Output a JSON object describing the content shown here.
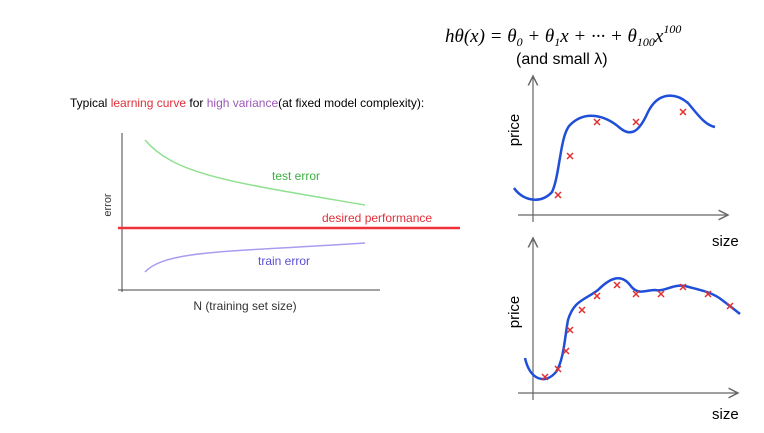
{
  "formula": {
    "parts": [
      "hθ(x) = θ",
      "0",
      " + θ",
      "1",
      "x + ··· + θ",
      "100",
      "x",
      "100"
    ]
  },
  "subtitle": "(and small λ)",
  "learning_curve": {
    "title_parts": [
      "Typical ",
      "learning curve",
      " for ",
      "high variance",
      "(at fixed model complexity):"
    ],
    "y_label": "error",
    "x_label": "N (training set size)",
    "test_label": "test error",
    "desired_label": "desired performance",
    "train_label": "train error"
  },
  "fit_top": {
    "y_label": "price",
    "x_label": "size"
  },
  "fit_bottom": {
    "y_label": "price",
    "x_label": "size"
  }
}
